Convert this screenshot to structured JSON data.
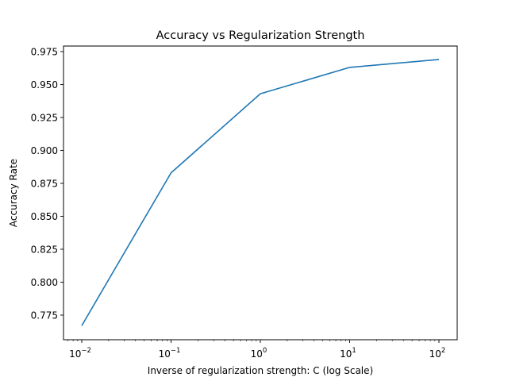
{
  "chart_data": {
    "type": "line",
    "title": "Accuracy vs Regularization Strength",
    "xlabel": "Inverse of regularization strength: C (log Scale)",
    "ylabel": "Accuracy Rate",
    "x_scale": "log",
    "x_ticks": [
      {
        "base": "10",
        "exp": "−2",
        "value": 0.01
      },
      {
        "base": "10",
        "exp": "−1",
        "value": 0.1
      },
      {
        "base": "10",
        "exp": "0",
        "value": 1
      },
      {
        "base": "10",
        "exp": "1",
        "value": 10
      },
      {
        "base": "10",
        "exp": "2",
        "value": 100
      }
    ],
    "y_ticks": [
      "0.775",
      "0.800",
      "0.825",
      "0.850",
      "0.875",
      "0.900",
      "0.925",
      "0.950",
      "0.975"
    ],
    "ylim": [
      0.757,
      0.979
    ],
    "grid": false,
    "series": [
      {
        "color": "#1f77b4",
        "x": [
          0.01,
          0.1,
          1,
          10,
          100
        ],
        "y": [
          0.767,
          0.883,
          0.943,
          0.963,
          0.969
        ]
      }
    ]
  }
}
